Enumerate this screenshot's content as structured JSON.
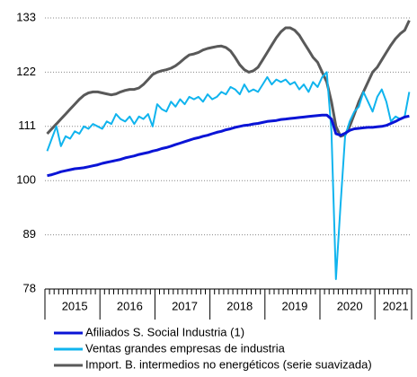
{
  "chart_data": {
    "type": "line",
    "categories": [
      null,
      null,
      null,
      null,
      null,
      null,
      "2015",
      null,
      null,
      null,
      null,
      null,
      null,
      null,
      null,
      null,
      null,
      null,
      "2016",
      null,
      null,
      null,
      null,
      null,
      null,
      null,
      null,
      null,
      null,
      null,
      "2017",
      null,
      null,
      null,
      null,
      null,
      null,
      null,
      null,
      null,
      null,
      null,
      "2018",
      null,
      null,
      null,
      null,
      null,
      null,
      null,
      null,
      null,
      null,
      null,
      "2019",
      null,
      null,
      null,
      null,
      null,
      null,
      null,
      null,
      null,
      null,
      null,
      "2020",
      null,
      null,
      null,
      null,
      null,
      null,
      null,
      null,
      null,
      "2021",
      null,
      null,
      null
    ],
    "ylim": [
      78,
      133
    ],
    "yticks": [
      78,
      89,
      100,
      111,
      122,
      133
    ],
    "grid": true,
    "series": [
      {
        "name": "Afiliados S. Social Industria (1)",
        "color": "#0a14d6",
        "values": [
          101,
          101.2,
          101.5,
          101.8,
          102,
          102.2,
          102.4,
          102.5,
          102.6,
          102.8,
          103,
          103.2,
          103.5,
          103.7,
          103.9,
          104.1,
          104.3,
          104.6,
          104.8,
          105,
          105.3,
          105.5,
          105.7,
          106,
          106.2,
          106.5,
          106.7,
          107,
          107.3,
          107.6,
          107.9,
          108.2,
          108.5,
          108.7,
          109,
          109.2,
          109.5,
          109.8,
          110,
          110.3,
          110.5,
          110.8,
          111,
          111.2,
          111.3,
          111.5,
          111.6,
          111.8,
          112,
          112.1,
          112.2,
          112.4,
          112.5,
          112.6,
          112.7,
          112.8,
          112.9,
          113,
          113.1,
          113.2,
          113.3,
          113.3,
          112.5,
          109.5,
          109.2,
          109.6,
          110.2,
          110.5,
          110.6,
          110.7,
          110.8,
          110.8,
          110.9,
          111,
          111.2,
          111.6,
          112,
          112.5,
          112.9,
          113.1
        ]
      },
      {
        "name": "Ventas grandes empresas de industria",
        "color": "#10b4ee",
        "values": [
          106,
          108.5,
          111,
          107,
          109,
          108.5,
          110,
          109.5,
          111,
          110.5,
          111.5,
          111,
          110.5,
          112,
          111.5,
          113.5,
          112.5,
          112,
          113,
          111.5,
          113,
          112.5,
          113.5,
          111,
          115.5,
          114.5,
          114,
          116,
          115,
          116.5,
          115.5,
          117,
          116.5,
          117,
          116,
          117.5,
          116.5,
          117,
          118,
          117.5,
          119,
          118.5,
          117.5,
          119.5,
          118,
          118.5,
          118,
          119.5,
          121,
          119.5,
          120.5,
          120,
          120.5,
          119.5,
          120,
          118.5,
          119.5,
          118,
          120,
          119,
          121,
          122,
          110,
          80,
          95,
          109,
          112,
          114,
          115,
          118,
          116,
          114,
          117,
          118.5,
          116,
          112,
          113,
          112.5,
          113,
          118
        ]
      },
      {
        "name": "Import. B. intermedios no energéticos (serie suavizada)",
        "color": "#595959",
        "values": [
          109.5,
          110.5,
          111.5,
          112.5,
          113.5,
          114.5,
          115.5,
          116.5,
          117.3,
          117.8,
          118,
          118,
          117.8,
          117.6,
          117.4,
          117.6,
          118,
          118.3,
          118.5,
          118.5,
          118.8,
          119.5,
          120.5,
          121.5,
          122,
          122.3,
          122.5,
          122.8,
          123.3,
          124,
          124.8,
          125.5,
          125.7,
          126,
          126.5,
          126.8,
          127,
          127.2,
          127.3,
          127,
          126.3,
          125,
          123.5,
          122.5,
          122,
          122.3,
          123,
          124.5,
          126,
          127.5,
          129,
          130.2,
          131,
          131,
          130.5,
          129.5,
          128,
          126.5,
          125,
          124,
          122,
          120,
          116,
          111,
          109,
          109.3,
          111,
          113.5,
          116,
          118,
          120,
          122,
          123,
          124.5,
          126,
          127.5,
          128.8,
          129.8,
          130.5,
          132.5
        ]
      }
    ]
  }
}
